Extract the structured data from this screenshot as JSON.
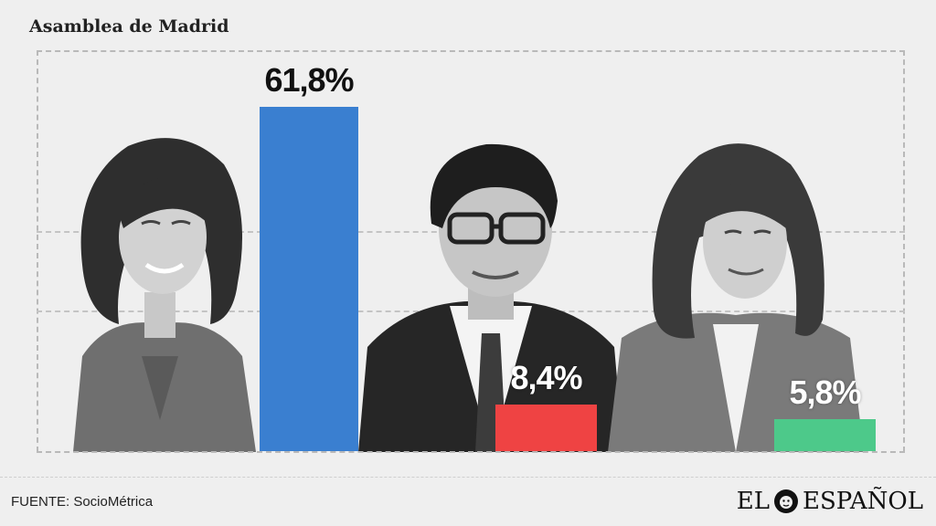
{
  "title": "Asamblea de Madrid",
  "source": "FUENTE: SocioMétrica",
  "logo_text": "EL ESPAÑOL",
  "colors": {
    "pp": "#3a7fd0",
    "psoe": "#ef4343",
    "mm": "#4dc98a"
  },
  "chart_data": {
    "type": "bar",
    "title": "Asamblea de Madrid",
    "xlabel": "",
    "ylabel": "",
    "categories": [
      "",
      "",
      ""
    ],
    "values": [
      61.8,
      8.4,
      5.8
    ],
    "labels": [
      "61,8%",
      "8,4%",
      "5,8%"
    ],
    "ylim": [
      0,
      70
    ],
    "grid": true
  }
}
